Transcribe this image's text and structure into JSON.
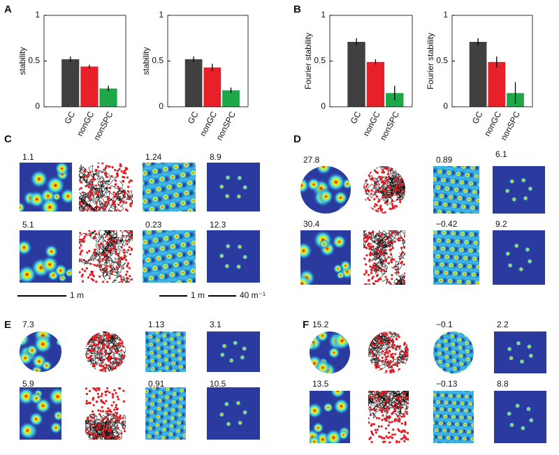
{
  "letters": [
    "A",
    "B"
  ],
  "chart_data": [
    {
      "type": "bar",
      "ylabel": "stability",
      "categories": [
        "GC",
        "nonGC",
        "nonSPC"
      ],
      "values": [
        0.52,
        0.44,
        0.2
      ],
      "errors": [
        0.03,
        0.02,
        0.03
      ],
      "colors": [
        "#404040",
        "#e8202a",
        "#1fa84a"
      ],
      "ylim": [
        0,
        1
      ],
      "yticks": [
        0,
        0.5,
        1
      ]
    },
    {
      "type": "bar",
      "ylabel": "stability",
      "categories": [
        "GC",
        "nonGC",
        "nonSPC"
      ],
      "values": [
        0.52,
        0.43,
        0.18
      ],
      "errors": [
        0.03,
        0.04,
        0.03
      ],
      "colors": [
        "#404040",
        "#e8202a",
        "#1fa84a"
      ],
      "ylim": [
        0,
        1
      ],
      "yticks": [
        0,
        0.5,
        1
      ]
    },
    {
      "type": "bar",
      "ylabel": "Fourier stability",
      "categories": [
        "GC",
        "nonGC",
        "nonSPC"
      ],
      "values": [
        0.71,
        0.49,
        0.15
      ],
      "errors": [
        0.04,
        0.03,
        0.08
      ],
      "colors": [
        "#404040",
        "#e8202a",
        "#1fa84a"
      ],
      "ylim": [
        0,
        1
      ],
      "yticks": [
        0,
        0.5,
        1
      ]
    },
    {
      "type": "bar",
      "ylabel": "Fourier stability",
      "categories": [
        "GC",
        "nonGC",
        "nonSPC"
      ],
      "values": [
        0.71,
        0.49,
        0.15
      ],
      "errors": [
        0.04,
        0.06,
        0.12
      ],
      "colors": [
        "#404040",
        "#e8202a",
        "#1fa84a"
      ],
      "ylim": [
        0,
        1
      ],
      "yticks": [
        0,
        0.5,
        1
      ]
    }
  ],
  "panels": [
    {
      "letter": "C",
      "labels": [
        [
          "1.1",
          "1.24",
          "8.9"
        ],
        [
          "5.1",
          "0.23",
          "12.3"
        ]
      ],
      "scale_bars": [
        "1 m",
        "1 m",
        "40 m⁻¹"
      ]
    },
    {
      "letter": "D",
      "labels": [
        [
          "27.8",
          "0.89",
          "6.1"
        ],
        [
          "30.4",
          "−0.42",
          "9.2"
        ]
      ]
    },
    {
      "letter": "E",
      "labels": [
        [
          "7.3",
          "1.13",
          "3.1"
        ],
        [
          "5.9",
          "0.91",
          "10.5"
        ]
      ]
    },
    {
      "letter": "F",
      "labels": [
        [
          "15.2",
          "−0.1",
          "2.2"
        ],
        [
          "13.5",
          "−0.13",
          "8.8"
        ]
      ]
    }
  ]
}
